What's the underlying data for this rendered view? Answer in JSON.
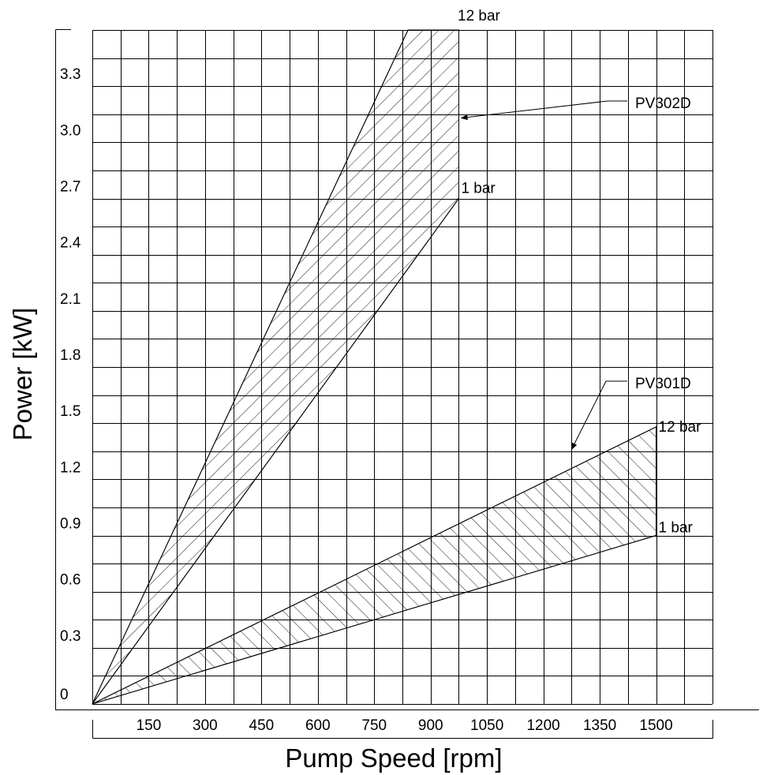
{
  "chart_data": {
    "type": "area",
    "title": "",
    "xlabel": "Pump Speed [rpm]",
    "ylabel": "Power [kW]",
    "xlim": [
      0,
      1650
    ],
    "ylim": [
      0,
      3.6
    ],
    "x_ticks": [
      150,
      300,
      450,
      600,
      750,
      900,
      1050,
      1200,
      1350,
      1500
    ],
    "y_ticks": [
      0,
      0.3,
      0.6,
      0.9,
      1.2,
      1.5,
      1.8,
      2.1,
      2.4,
      2.7,
      3.0,
      3.3
    ],
    "y_tick_labels": [
      "0",
      "0.3",
      "0.6",
      "0.9",
      "1.2",
      "1.5",
      "1.8",
      "2.1",
      "2.4",
      "2.7",
      "3.0",
      "3.3"
    ],
    "grid": true,
    "series": [
      {
        "name": "PV302D",
        "hatch": "backslash",
        "upper": {
          "label": "12 bar",
          "points": [
            [
              0,
              0
            ],
            [
              840,
              3.6
            ],
            [
              975,
              3.6
            ]
          ]
        },
        "lower": {
          "label": "1 bar",
          "points": [
            [
              0,
              0
            ],
            [
              975,
              2.7
            ]
          ]
        },
        "label_anchor": [
          975,
          3.13
        ]
      },
      {
        "name": "PV301D",
        "hatch": "slash",
        "upper": {
          "label": "12 bar",
          "points": [
            [
              0,
              0
            ],
            [
              1500,
              1.48
            ]
          ]
        },
        "lower": {
          "label": "1 bar",
          "points": [
            [
              0,
              0
            ],
            [
              1500,
              0.9
            ]
          ]
        },
        "label_anchor": [
          1275,
          1.36
        ]
      }
    ]
  }
}
